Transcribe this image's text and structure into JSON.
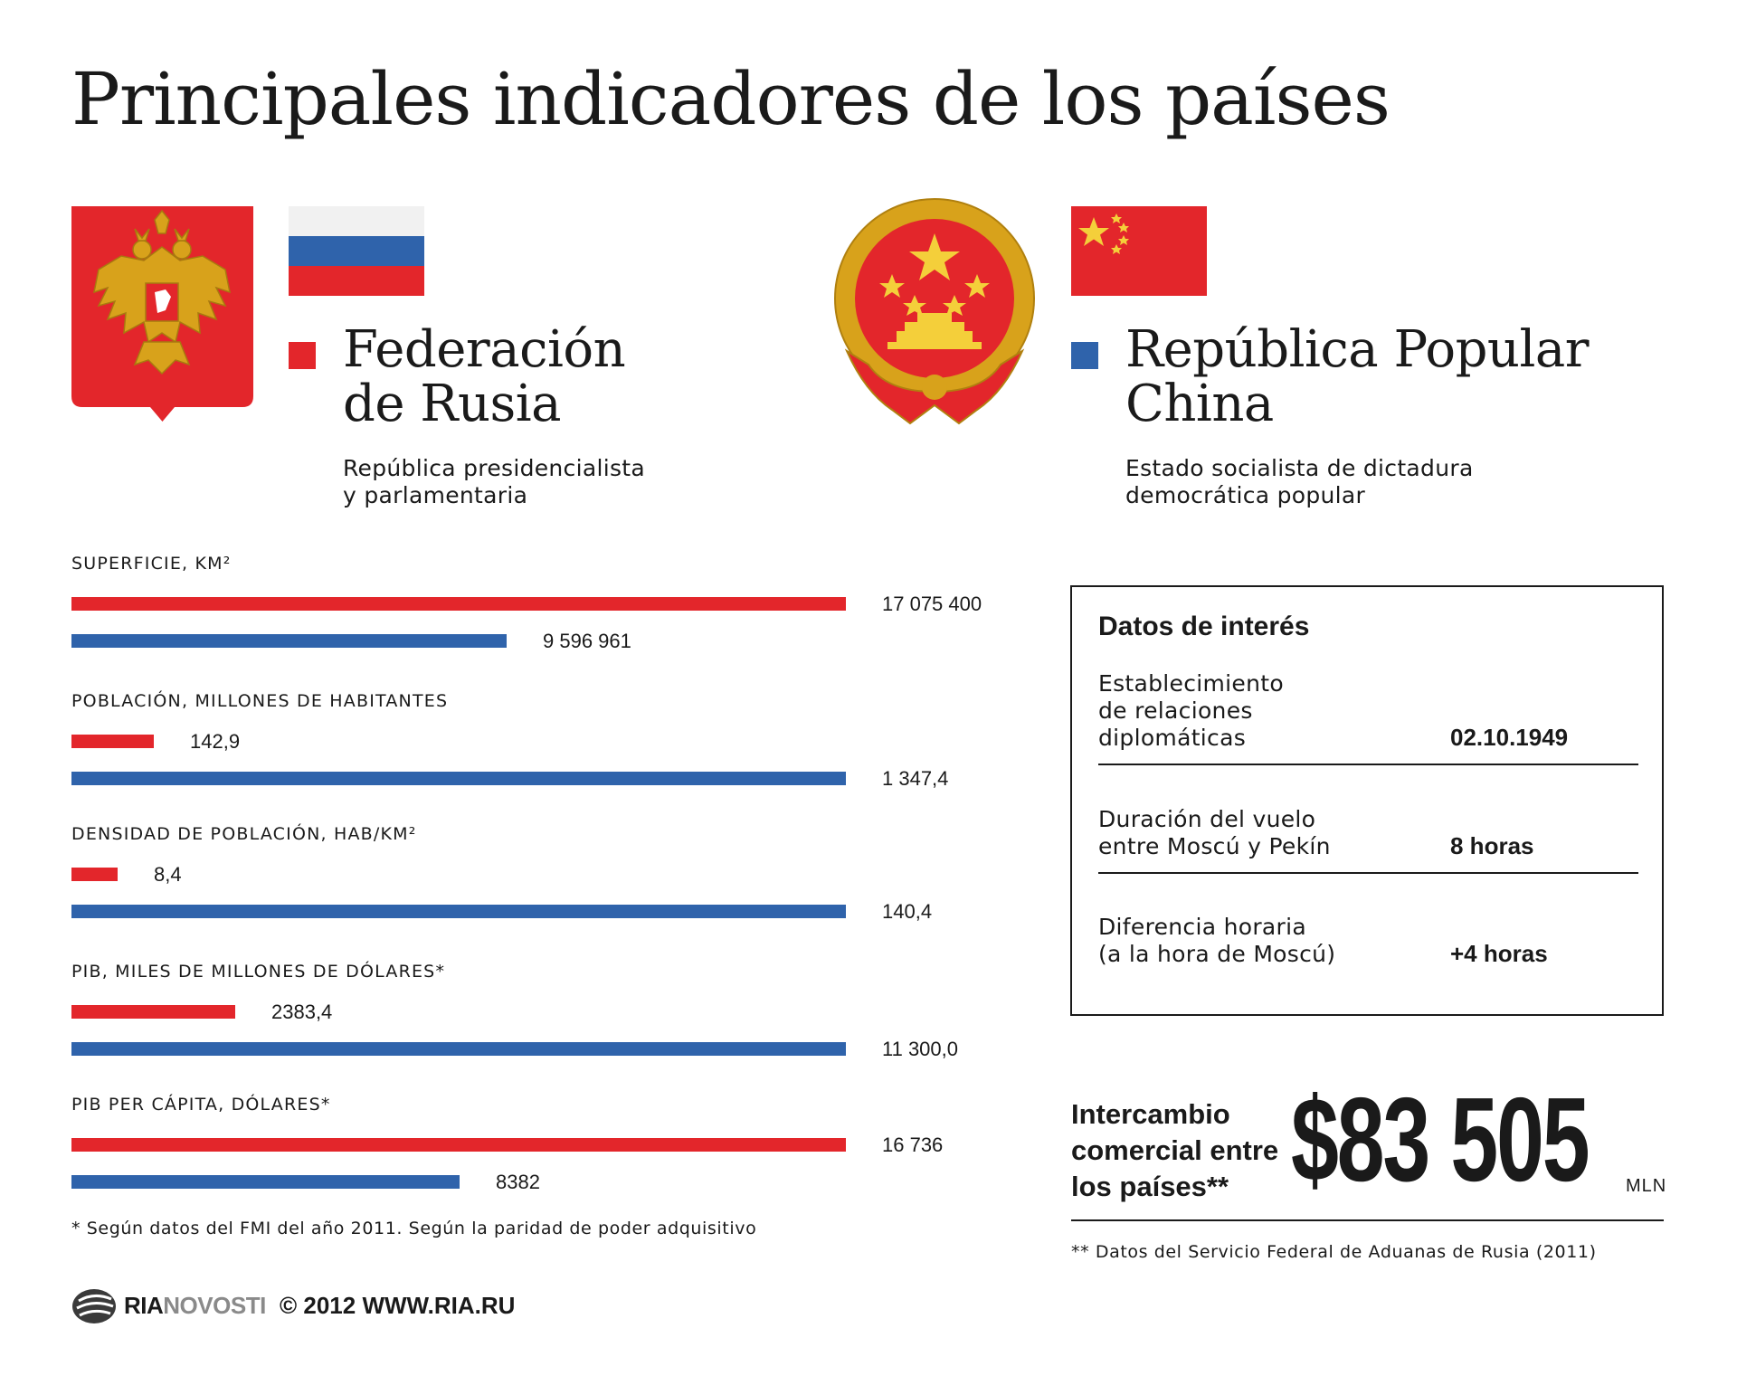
{
  "title": "Principales indicadores de los países",
  "colors": {
    "russia": "#e3262b",
    "china": "#2f63ab",
    "gold": "#d8a21b",
    "text": "#1a1a1a"
  },
  "russia": {
    "name": "Federación\nde Rusia",
    "description": "República presidencialista\ny parlamentaria",
    "emblem": "russian-coat-of-arms",
    "flag": "russian-flag"
  },
  "china": {
    "name": "República Popular\nChina",
    "description": "Estado socialista de dictadura\ndemocrática popular",
    "emblem": "chinese-national-emblem",
    "flag": "chinese-flag"
  },
  "chart_data": {
    "type": "bar",
    "orientation": "horizontal",
    "series": [
      {
        "name": "Federación de Rusia",
        "color": "#e3262b"
      },
      {
        "name": "República Popular China",
        "color": "#2f63ab"
      }
    ],
    "metrics": [
      {
        "label": "SUPERFICIE, KM²",
        "russia": 17075400,
        "china": 9596961,
        "russia_label": "17 075 400",
        "china_label": "9 596 961"
      },
      {
        "label": "POBLACIÓN, MILLONES DE HABITANTES",
        "russia": 142.9,
        "china": 1347.4,
        "russia_label": "142,9",
        "china_label": "1 347,4"
      },
      {
        "label": "DENSIDAD DE POBLACIÓN, HAB/KM²",
        "russia": 8.4,
        "china": 140.4,
        "russia_label": "8,4",
        "china_label": "140,4"
      },
      {
        "label": "PIB, MILES DE MILLONES DE DÓLARES*",
        "russia": 2383.4,
        "china": 11300.0,
        "russia_label": "2383,4",
        "china_label": "11 300,0"
      },
      {
        "label": "PIB PER CÁPITA, DÓLARES*",
        "russia": 16736,
        "china": 8382,
        "russia_label": "16 736",
        "china_label": "8382"
      }
    ]
  },
  "footnote1": "* Según datos del FMI del año 2011. Según la paridad de poder adquisitivo",
  "facts": {
    "title": "Datos de interés",
    "items": [
      {
        "label": "Establecimiento\nde relaciones\ndiplomáticas",
        "value": "02.10.1949"
      },
      {
        "label": "Duración del vuelo\nentre Moscú y Pekín",
        "value": "8 horas"
      },
      {
        "label": "Diferencia horaria\n(a la hora de Moscú)",
        "value": "+4 horas"
      }
    ]
  },
  "trade": {
    "label": "Intercambio\ncomercial entre\nlos países**",
    "value": "$83 505",
    "unit": "MLN"
  },
  "footnote2": "** Datos del Servicio Federal de Aduanas de Rusia (2011)",
  "footer": {
    "logo_bold": "RIA",
    "logo_light": "NOVOSTI",
    "logo_icon": "ria-novosti-logo-icon",
    "copyright": "© 2012 WWW.RIA.RU"
  }
}
